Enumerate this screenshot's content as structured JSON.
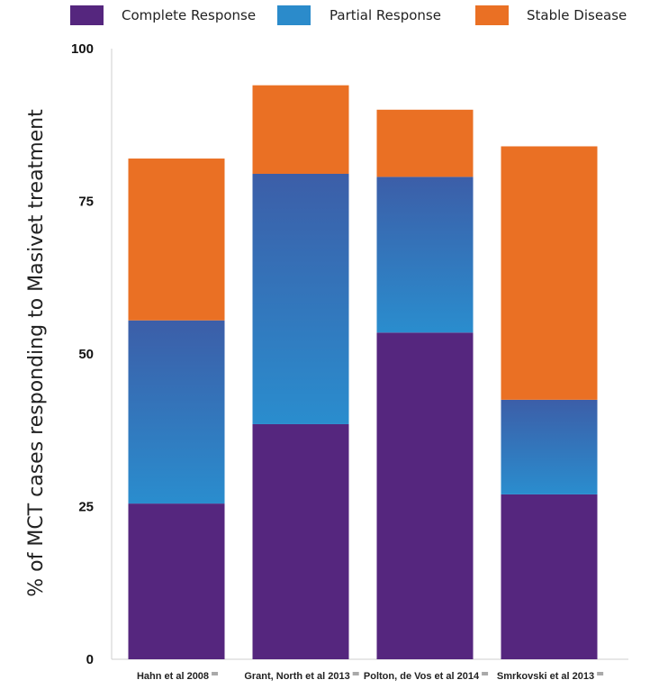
{
  "chart_data": {
    "type": "bar",
    "stacked": true,
    "title": "",
    "xlabel": "",
    "ylabel": "% of MCT cases responding to Masivet treatment",
    "ylim": [
      0,
      100
    ],
    "yticks": [
      0,
      25,
      50,
      75,
      100
    ],
    "legend_position": "top",
    "categories": [
      "Hahn et al 2008",
      "Grant, North et al 2013",
      "Polton, de Vos et al 2014",
      "Smrkovski et al 2013"
    ],
    "series": [
      {
        "name": "Complete Response",
        "color": "#55267e",
        "values": [
          25.5,
          38.5,
          53.5,
          27
        ]
      },
      {
        "name": "Partial Response",
        "color": "#2b8bcb",
        "values": [
          30,
          41,
          25.5,
          15.5
        ]
      },
      {
        "name": "Stable Disease",
        "color": "#ea7024",
        "values": [
          26.5,
          14.5,
          11,
          41.5
        ]
      }
    ],
    "grid": false
  }
}
